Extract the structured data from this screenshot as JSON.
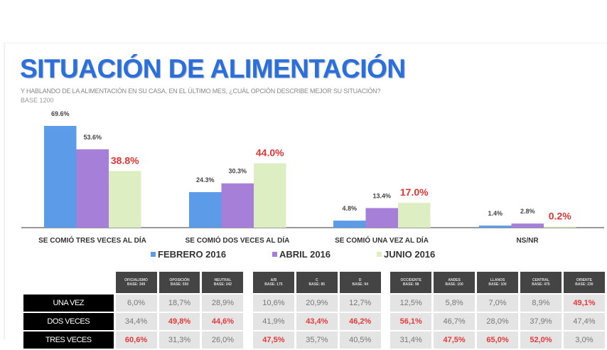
{
  "title": "SITUACIÓN DE ALIMENTACIÓN",
  "subtitle": "Y HABLANDO DE LA ALIMENTACIÓN EN SU CASA, EN EL ÚLTIMO MES, ¿CUÁL OPCIÓN DESCRIBE MEJOR SU SITUACIÓN?",
  "base": "BASE 1200",
  "chart_data": {
    "type": "bar",
    "categories": [
      "SE COMIÓ TRES VECES AL DÍA",
      "SE COMIÓ DOS VECES AL DÍA",
      "SE COMIÓ UNA VEZ AL DÍA",
      "NS/NR"
    ],
    "series": [
      {
        "name": "FEBRERO 2016",
        "values": [
          69.6,
          24.3,
          4.8,
          1.4
        ],
        "labels": [
          "69.6%",
          "24.3%",
          "4.8%",
          "1.4%"
        ],
        "color": "#5b9be8"
      },
      {
        "name": "ABRIL 2016",
        "values": [
          53.6,
          30.3,
          13.4,
          2.8
        ],
        "labels": [
          "53.6%",
          "30.3%",
          "13.4%",
          "2.8%"
        ],
        "color": "#a67fd8"
      },
      {
        "name": "JUNIO 2016",
        "values": [
          38.8,
          44.0,
          17.0,
          0.2
        ],
        "labels": [
          "38.8%",
          "44.0%",
          "17.0%",
          "0.2%"
        ],
        "color": "#ddefc2",
        "label_color": "#e03535"
      }
    ],
    "ylim": [
      0,
      70
    ],
    "grid": false,
    "legend": "bottom"
  },
  "table": {
    "headers": [
      [
        "OFICIALISMO",
        "BASE: 349"
      ],
      [
        "OPOSICIÓN",
        "BASE: 550"
      ],
      [
        "NEUTRAL",
        "BASE: 242"
      ],
      [
        "A/B",
        "BASE: 175"
      ],
      [
        "C",
        "BASE: 85"
      ],
      [
        "D",
        "BASE: 94"
      ],
      [
        "OCCIDENTE",
        "BASE: 98"
      ],
      [
        "ANDES",
        "BASE: 100"
      ],
      [
        "LLANOS",
        "BASE: 100"
      ],
      [
        "CENTRAL",
        "BASE: 475"
      ],
      [
        "ORIENTE",
        "BASE: 230"
      ]
    ],
    "rows": [
      {
        "label": "UNA VEZ",
        "values": [
          "6,0%",
          "18,7%",
          "28,9%",
          "10,6%",
          "20,9%",
          "12,7%",
          "12,5%",
          "5,8%",
          "7,0%",
          "8,9%",
          "49,1%"
        ],
        "highlight": [
          10
        ]
      },
      {
        "label": "DOS VECES",
        "values": [
          "34,4%",
          "49,8%",
          "44,6%",
          "41,9%",
          "43,4%",
          "46,2%",
          "56,1%",
          "46,7%",
          "28,0%",
          "37,9%",
          "47,4%"
        ],
        "highlight": [
          1,
          2,
          4,
          5,
          6
        ]
      },
      {
        "label": "TRES VECES",
        "values": [
          "60,6%",
          "31,3%",
          "26,0%",
          "47,5%",
          "35,7%",
          "40,5%",
          "31,4%",
          "47,5%",
          "65,0%",
          "52,0%",
          "3,0%"
        ],
        "highlight": [
          0,
          3,
          7,
          8,
          9
        ]
      }
    ]
  }
}
